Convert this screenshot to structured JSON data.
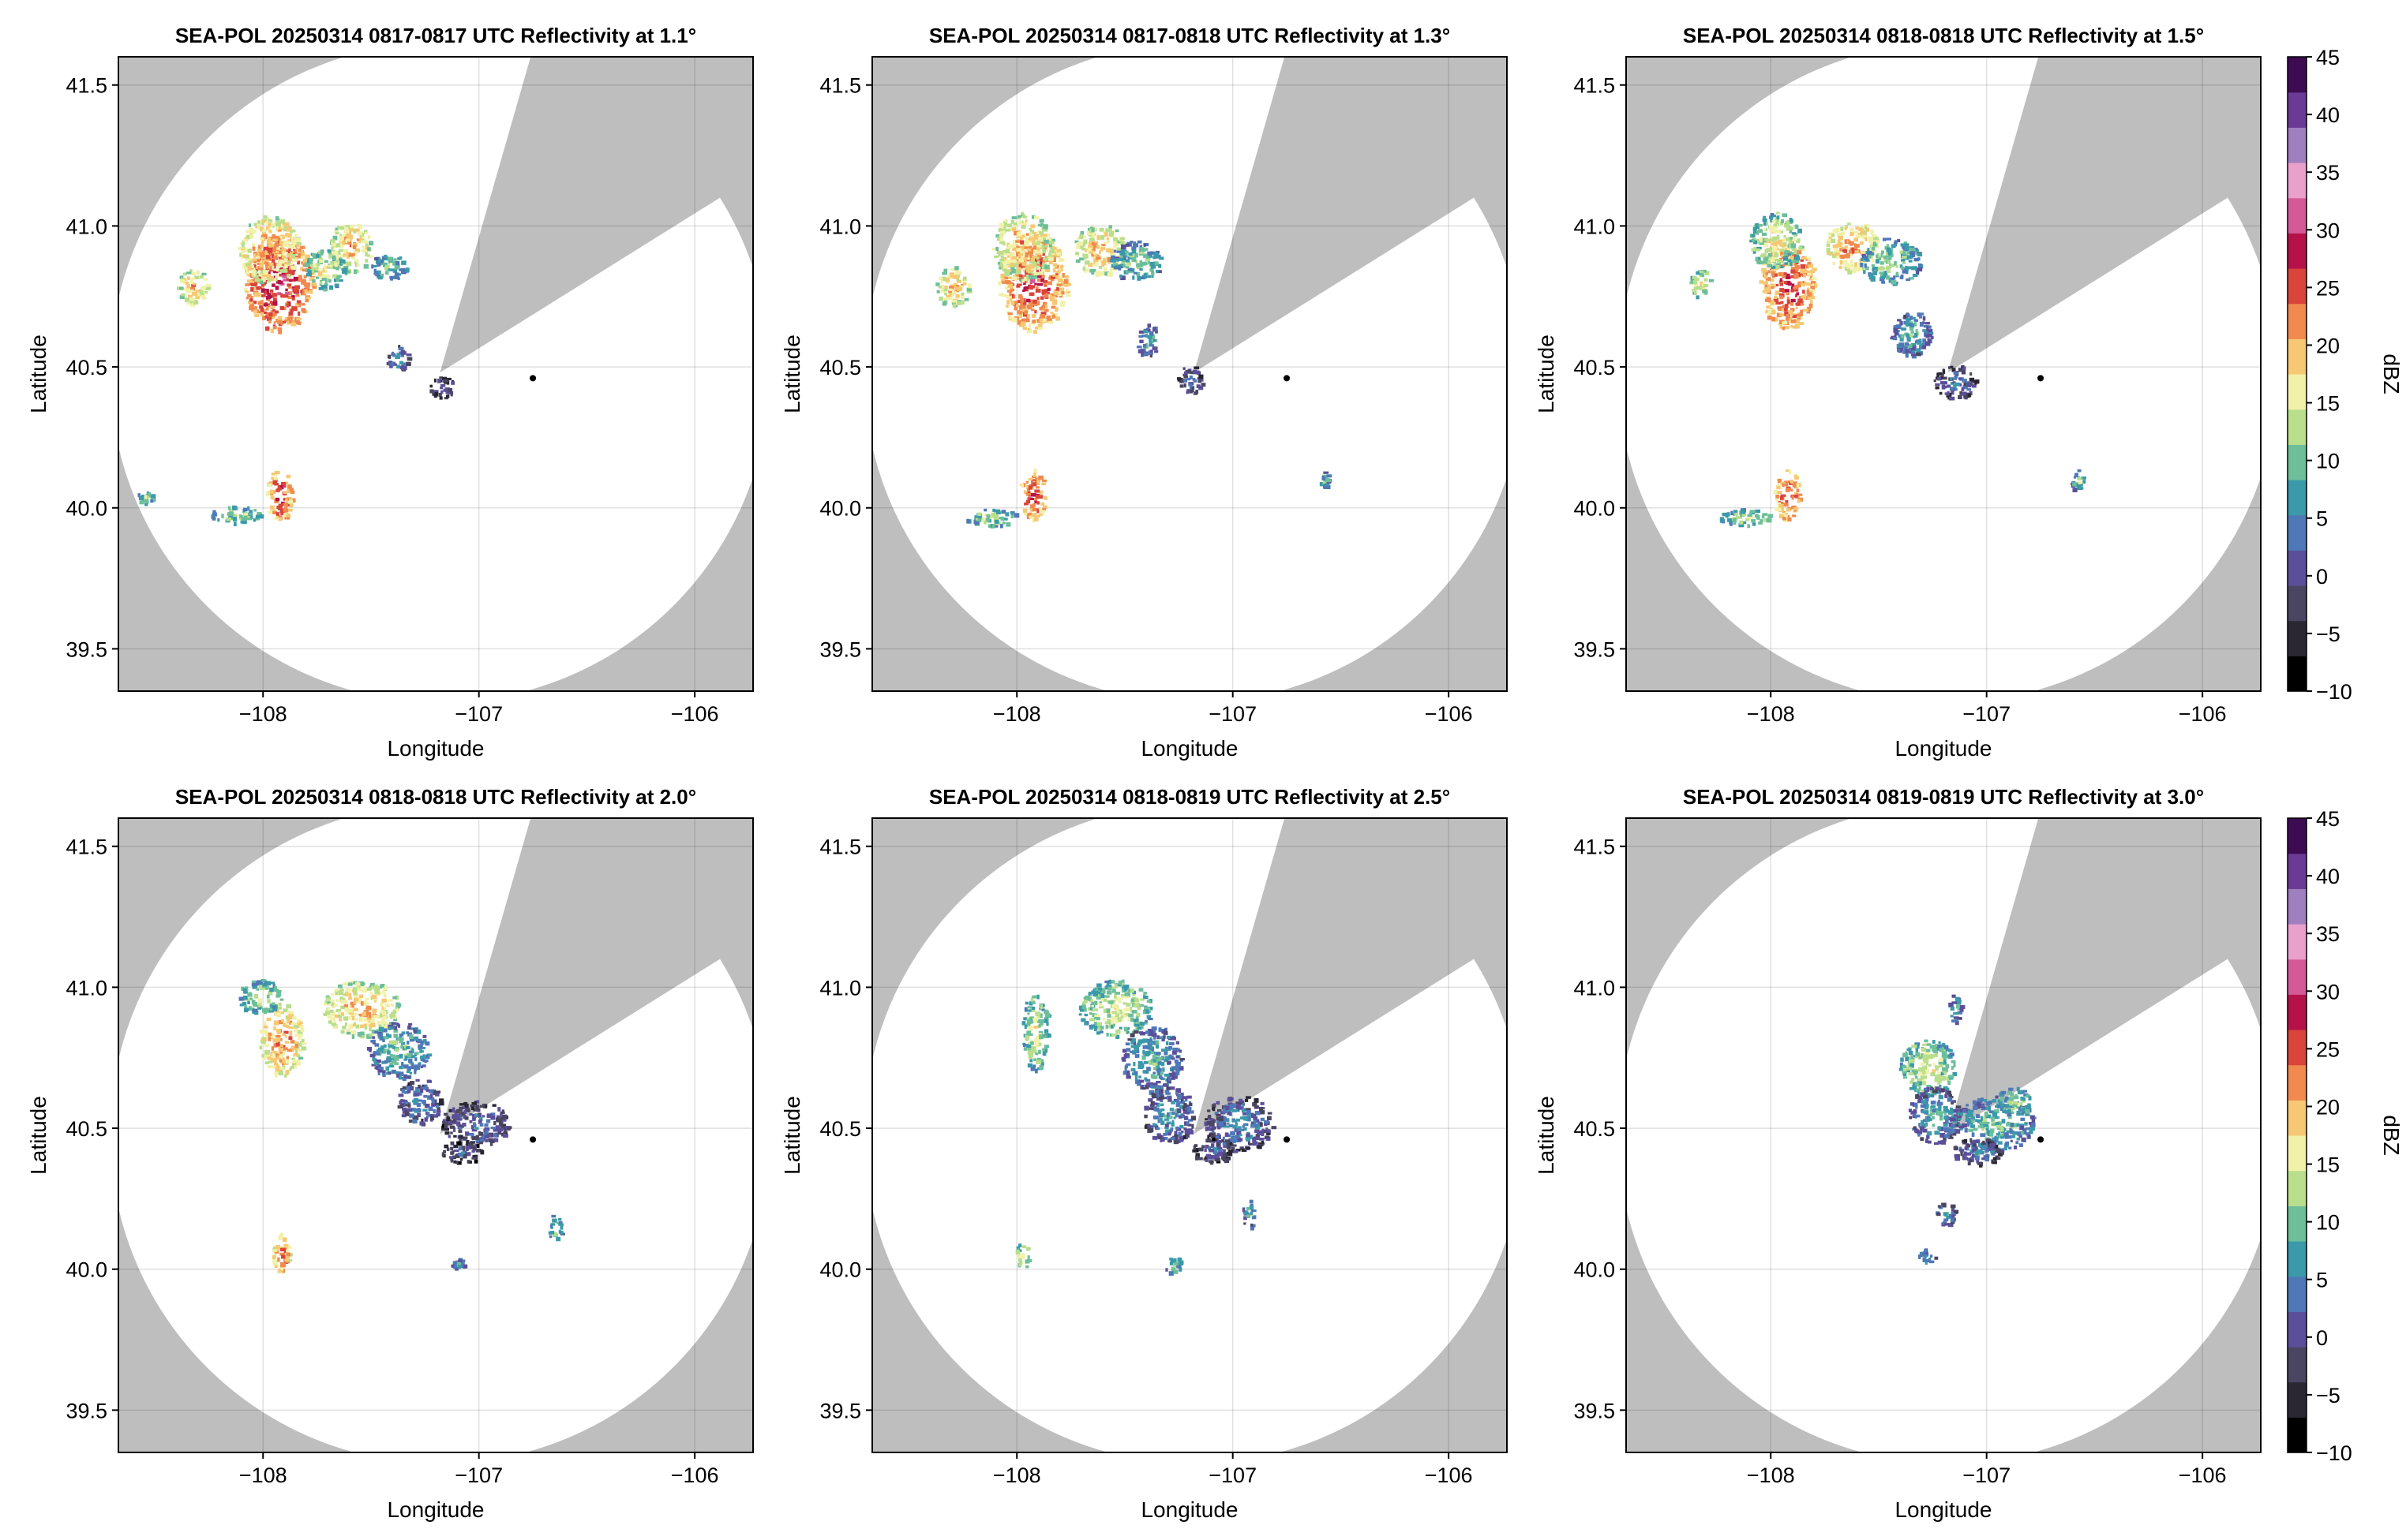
{
  "figure": {
    "background_mask_color": "#bebebe",
    "sweep_area_color": "#ffffff",
    "radar_marker": {
      "lon": -106.75,
      "lat": 40.46
    },
    "radar_center": {
      "lon": -107.18,
      "lat": 40.48
    }
  },
  "chart_data": [
    {
      "type": "heatmap",
      "title": "SEA-POL 20250314 0817-0817 UTC Reflectivity at 1.1°",
      "xlabel": "Longitude",
      "ylabel": "Latitude",
      "xlim": [
        -108.67,
        -105.73
      ],
      "ylim": [
        39.35,
        41.6
      ],
      "xticks": [
        -108,
        -107,
        -106
      ],
      "xtick_labels": [
        "−108",
        "−107",
        "−106"
      ],
      "yticks": [
        39.5,
        40.0,
        40.5,
        41.0,
        41.5
      ],
      "ytick_labels": [
        "39.5",
        "40.0",
        "40.5",
        "41.0",
        "41.5"
      ],
      "grid": true,
      "echoes": [
        {
          "lon": -107.93,
          "lat": 40.8,
          "rlon": 0.16,
          "rlat": 0.17,
          "dbz": 30
        },
        {
          "lon": -107.98,
          "lat": 40.92,
          "rlon": 0.14,
          "rlat": 0.12,
          "dbz": 24
        },
        {
          "lon": -107.6,
          "lat": 40.93,
          "rlon": 0.1,
          "rlat": 0.09,
          "dbz": 22
        },
        {
          "lon": -107.72,
          "lat": 40.85,
          "rlon": 0.1,
          "rlat": 0.07,
          "dbz": 17
        },
        {
          "lon": -107.42,
          "lat": 40.86,
          "rlon": 0.08,
          "rlat": 0.05,
          "dbz": 12
        },
        {
          "lon": -108.33,
          "lat": 40.79,
          "rlon": 0.07,
          "rlat": 0.06,
          "dbz": 22
        },
        {
          "lon": -107.38,
          "lat": 40.53,
          "rlon": 0.05,
          "rlat": 0.05,
          "dbz": 7
        },
        {
          "lon": -107.17,
          "lat": 40.43,
          "rlon": 0.06,
          "rlat": 0.04,
          "dbz": 3
        },
        {
          "lon": -107.93,
          "lat": 40.05,
          "rlon": 0.06,
          "rlat": 0.09,
          "dbz": 28
        },
        {
          "lon": -108.13,
          "lat": 39.98,
          "rlon": 0.12,
          "rlat": 0.03,
          "dbz": 15
        },
        {
          "lon": -108.55,
          "lat": 40.04,
          "rlon": 0.04,
          "rlat": 0.02,
          "dbz": 15
        }
      ]
    },
    {
      "type": "heatmap",
      "title": "SEA-POL 20250314 0817-0818 UTC Reflectivity at 1.3°",
      "xlabel": "Longitude",
      "ylabel": "Latitude",
      "xlim": [
        -108.67,
        -105.73
      ],
      "ylim": [
        39.35,
        41.6
      ],
      "xticks": [
        -108,
        -107,
        -106
      ],
      "xtick_labels": [
        "−108",
        "−107",
        "−106"
      ],
      "yticks": [
        39.5,
        40.0,
        40.5,
        41.0,
        41.5
      ],
      "ytick_labels": [
        "39.5",
        "40.0",
        "40.5",
        "41.0",
        "41.5"
      ],
      "grid": true,
      "echoes": [
        {
          "lon": -107.93,
          "lat": 40.8,
          "rlon": 0.16,
          "rlat": 0.17,
          "dbz": 28
        },
        {
          "lon": -107.98,
          "lat": 40.93,
          "rlon": 0.14,
          "rlat": 0.12,
          "dbz": 22
        },
        {
          "lon": -107.62,
          "lat": 40.92,
          "rlon": 0.12,
          "rlat": 0.09,
          "dbz": 22
        },
        {
          "lon": -107.45,
          "lat": 40.88,
          "rlon": 0.12,
          "rlat": 0.07,
          "dbz": 13
        },
        {
          "lon": -108.3,
          "lat": 40.79,
          "rlon": 0.08,
          "rlat": 0.07,
          "dbz": 22
        },
        {
          "lon": -107.4,
          "lat": 40.6,
          "rlon": 0.05,
          "rlat": 0.06,
          "dbz": 10
        },
        {
          "lon": -107.2,
          "lat": 40.46,
          "rlon": 0.06,
          "rlat": 0.05,
          "dbz": 5
        },
        {
          "lon": -107.93,
          "lat": 40.05,
          "rlon": 0.06,
          "rlat": 0.09,
          "dbz": 28
        },
        {
          "lon": -108.12,
          "lat": 39.97,
          "rlon": 0.12,
          "rlat": 0.03,
          "dbz": 15
        },
        {
          "lon": -106.58,
          "lat": 40.1,
          "rlon": 0.02,
          "rlat": 0.03,
          "dbz": 12
        }
      ]
    },
    {
      "type": "heatmap",
      "title": "SEA-POL 20250314 0818-0818 UTC Reflectivity at 1.5°",
      "xlabel": "Longitude",
      "ylabel": "Latitude",
      "xlim": [
        -108.67,
        -105.73
      ],
      "ylim": [
        39.35,
        41.6
      ],
      "xticks": [
        -108,
        -107,
        -106
      ],
      "xtick_labels": [
        "−108",
        "−107",
        "−106"
      ],
      "yticks": [
        39.5,
        40.0,
        40.5,
        41.0,
        41.5
      ],
      "ytick_labels": [
        "39.5",
        "40.0",
        "40.5",
        "41.0",
        "41.5"
      ],
      "grid": true,
      "echoes": [
        {
          "lon": -107.93,
          "lat": 40.8,
          "rlon": 0.13,
          "rlat": 0.16,
          "dbz": 28
        },
        {
          "lon": -107.98,
          "lat": 40.95,
          "rlon": 0.12,
          "rlat": 0.1,
          "dbz": 18
        },
        {
          "lon": -107.63,
          "lat": 40.93,
          "rlon": 0.12,
          "rlat": 0.09,
          "dbz": 24
        },
        {
          "lon": -107.45,
          "lat": 40.88,
          "rlon": 0.14,
          "rlat": 0.08,
          "dbz": 14
        },
        {
          "lon": -108.33,
          "lat": 40.8,
          "rlon": 0.05,
          "rlat": 0.05,
          "dbz": 18
        },
        {
          "lon": -107.35,
          "lat": 40.62,
          "rlon": 0.1,
          "rlat": 0.08,
          "dbz": 10
        },
        {
          "lon": -107.15,
          "lat": 40.45,
          "rlon": 0.1,
          "rlat": 0.06,
          "dbz": 5
        },
        {
          "lon": -107.93,
          "lat": 40.05,
          "rlon": 0.06,
          "rlat": 0.09,
          "dbz": 28
        },
        {
          "lon": -108.12,
          "lat": 39.97,
          "rlon": 0.12,
          "rlat": 0.03,
          "dbz": 15
        },
        {
          "lon": -106.58,
          "lat": 40.1,
          "rlon": 0.04,
          "rlat": 0.04,
          "dbz": 12
        }
      ]
    },
    {
      "type": "heatmap",
      "title": "SEA-POL 20250314 0818-0818 UTC Reflectivity at 2.0°",
      "xlabel": "Longitude",
      "ylabel": "Latitude",
      "xlim": [
        -108.67,
        -105.73
      ],
      "ylim": [
        39.35,
        41.6
      ],
      "xticks": [
        -108,
        -107,
        -106
      ],
      "xtick_labels": [
        "−108",
        "−107",
        "−106"
      ],
      "yticks": [
        39.5,
        40.0,
        40.5,
        41.0,
        41.5
      ],
      "ytick_labels": [
        "39.5",
        "40.0",
        "40.5",
        "41.0",
        "41.5"
      ],
      "grid": true,
      "echoes": [
        {
          "lon": -107.92,
          "lat": 40.82,
          "rlon": 0.1,
          "rlat": 0.13,
          "dbz": 24
        },
        {
          "lon": -108.02,
          "lat": 40.97,
          "rlon": 0.1,
          "rlat": 0.06,
          "dbz": 16
        },
        {
          "lon": -107.55,
          "lat": 40.93,
          "rlon": 0.18,
          "rlat": 0.1,
          "dbz": 22
        },
        {
          "lon": -107.38,
          "lat": 40.78,
          "rlon": 0.14,
          "rlat": 0.1,
          "dbz": 12
        },
        {
          "lon": -107.28,
          "lat": 40.6,
          "rlon": 0.1,
          "rlat": 0.08,
          "dbz": 7
        },
        {
          "lon": -107.02,
          "lat": 40.52,
          "rlon": 0.16,
          "rlat": 0.08,
          "dbz": 5
        },
        {
          "lon": -107.08,
          "lat": 40.42,
          "rlon": 0.1,
          "rlat": 0.04,
          "dbz": 3
        },
        {
          "lon": -107.92,
          "lat": 40.05,
          "rlon": 0.04,
          "rlat": 0.08,
          "dbz": 26
        },
        {
          "lon": -106.65,
          "lat": 40.15,
          "rlon": 0.03,
          "rlat": 0.05,
          "dbz": 12
        },
        {
          "lon": -107.1,
          "lat": 40.02,
          "rlon": 0.03,
          "rlat": 0.02,
          "dbz": 10
        }
      ]
    },
    {
      "type": "heatmap",
      "title": "SEA-POL 20250314 0818-0819 UTC Reflectivity at 2.5°",
      "xlabel": "Longitude",
      "ylabel": "Latitude",
      "xlim": [
        -108.67,
        -105.73
      ],
      "ylim": [
        39.35,
        41.6
      ],
      "xticks": [
        -108,
        -107,
        -106
      ],
      "xtick_labels": [
        "−108",
        "−107",
        "−106"
      ],
      "yticks": [
        39.5,
        40.0,
        40.5,
        41.0,
        41.5
      ],
      "ytick_labels": [
        "39.5",
        "40.0",
        "40.5",
        "41.0",
        "41.5"
      ],
      "grid": true,
      "echoes": [
        {
          "lon": -107.55,
          "lat": 40.93,
          "rlon": 0.17,
          "rlat": 0.1,
          "dbz": 17
        },
        {
          "lon": -107.38,
          "lat": 40.75,
          "rlon": 0.14,
          "rlat": 0.12,
          "dbz": 10
        },
        {
          "lon": -107.3,
          "lat": 40.55,
          "rlon": 0.12,
          "rlat": 0.1,
          "dbz": 8
        },
        {
          "lon": -106.98,
          "lat": 40.52,
          "rlon": 0.16,
          "rlat": 0.1,
          "dbz": 7
        },
        {
          "lon": -107.92,
          "lat": 40.85,
          "rlon": 0.06,
          "rlat": 0.14,
          "dbz": 16
        },
        {
          "lon": -107.1,
          "lat": 40.43,
          "rlon": 0.1,
          "rlat": 0.05,
          "dbz": 3
        },
        {
          "lon": -107.98,
          "lat": 40.05,
          "rlon": 0.03,
          "rlat": 0.05,
          "dbz": 18
        },
        {
          "lon": -106.93,
          "lat": 40.2,
          "rlon": 0.03,
          "rlat": 0.05,
          "dbz": 10
        },
        {
          "lon": -107.28,
          "lat": 40.02,
          "rlon": 0.04,
          "rlat": 0.03,
          "dbz": 12
        }
      ]
    },
    {
      "type": "heatmap",
      "title": "SEA-POL 20250314 0819-0819 UTC Reflectivity at 3.0°",
      "xlabel": "Longitude",
      "ylabel": "Latitude",
      "xlim": [
        -108.67,
        -105.73
      ],
      "ylim": [
        39.35,
        41.6
      ],
      "xticks": [
        -108,
        -107,
        -106
      ],
      "xtick_labels": [
        "−108",
        "−107",
        "−106"
      ],
      "yticks": [
        39.5,
        40.0,
        40.5,
        41.0,
        41.5
      ],
      "ytick_labels": [
        "39.5",
        "40.0",
        "40.5",
        "41.0",
        "41.5"
      ],
      "grid": true,
      "echoes": [
        {
          "lon": -107.28,
          "lat": 40.72,
          "rlon": 0.13,
          "rlat": 0.1,
          "dbz": 17
        },
        {
          "lon": -107.25,
          "lat": 40.55,
          "rlon": 0.12,
          "rlat": 0.1,
          "dbz": 9
        },
        {
          "lon": -106.97,
          "lat": 40.52,
          "rlon": 0.18,
          "rlat": 0.1,
          "dbz": 12
        },
        {
          "lon": -106.88,
          "lat": 40.6,
          "rlon": 0.08,
          "rlat": 0.05,
          "dbz": 16
        },
        {
          "lon": -107.05,
          "lat": 40.42,
          "rlon": 0.12,
          "rlat": 0.05,
          "dbz": 5
        },
        {
          "lon": -107.15,
          "lat": 40.93,
          "rlon": 0.03,
          "rlat": 0.05,
          "dbz": 10
        },
        {
          "lon": -107.2,
          "lat": 40.2,
          "rlon": 0.05,
          "rlat": 0.04,
          "dbz": 8
        },
        {
          "lon": -107.28,
          "lat": 40.05,
          "rlon": 0.04,
          "rlat": 0.03,
          "dbz": 10
        }
      ]
    }
  ],
  "colorbars": [
    {
      "label": "dBZ",
      "range": [
        -10,
        45
      ],
      "ticks": [
        -10,
        -5,
        0,
        5,
        10,
        15,
        20,
        25,
        30,
        35,
        40,
        45
      ],
      "tick_labels": [
        "−10",
        "−5",
        "0",
        "5",
        "10",
        "15",
        "20",
        "25",
        "30",
        "35",
        "40",
        "45"
      ],
      "stops": [
        "#000000",
        "#2a2733",
        "#4a4560",
        "#5b4f9a",
        "#4f78b7",
        "#3a9aa9",
        "#6dbf9a",
        "#b9de8c",
        "#f1f1a8",
        "#f7c873",
        "#f08a4e",
        "#d9443b",
        "#b5124a",
        "#d45a97",
        "#e9a1cc",
        "#a07fbf",
        "#6a3a94",
        "#3c0b52"
      ]
    },
    {
      "label": "dBZ",
      "range": [
        -10,
        45
      ],
      "ticks": [
        -10,
        -5,
        0,
        5,
        10,
        15,
        20,
        25,
        30,
        35,
        40,
        45
      ],
      "tick_labels": [
        "−10",
        "−5",
        "0",
        "5",
        "10",
        "15",
        "20",
        "25",
        "30",
        "35",
        "40",
        "45"
      ],
      "stops": [
        "#000000",
        "#2a2733",
        "#4a4560",
        "#5b4f9a",
        "#4f78b7",
        "#3a9aa9",
        "#6dbf9a",
        "#b9de8c",
        "#f1f1a8",
        "#f7c873",
        "#f08a4e",
        "#d9443b",
        "#b5124a",
        "#d45a97",
        "#e9a1cc",
        "#a07fbf",
        "#6a3a94",
        "#3c0b52"
      ]
    }
  ]
}
